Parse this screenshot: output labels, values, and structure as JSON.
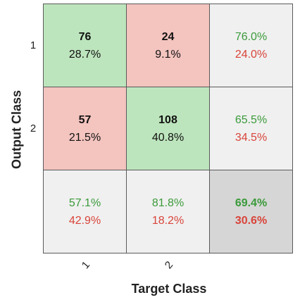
{
  "chart_data": {
    "type": "heatmap",
    "ylabel": "Output Class",
    "xlabel": "Target Class",
    "row_labels": [
      "1",
      "2"
    ],
    "col_labels": [
      "1",
      "2"
    ],
    "cells": [
      [
        {
          "count": "76",
          "percent": "28.7%"
        },
        {
          "count": "24",
          "percent": "9.1%"
        }
      ],
      [
        {
          "count": "57",
          "percent": "21.5%"
        },
        {
          "count": "108",
          "percent": "40.8%"
        }
      ]
    ],
    "row_summary": [
      {
        "correct": "76.0%",
        "incorrect": "24.0%"
      },
      {
        "correct": "65.5%",
        "incorrect": "34.5%"
      }
    ],
    "col_summary": [
      {
        "correct": "57.1%",
        "incorrect": "42.9%"
      },
      {
        "correct": "81.8%",
        "incorrect": "18.2%"
      }
    ],
    "overall": {
      "correct": "69.4%",
      "incorrect": "30.6%"
    },
    "colors": {
      "correct_cell": "#bde5bd",
      "incorrect_cell": "#f4c4bf",
      "summary_cell": "#f0f0f0",
      "overall_cell": "#d6d6d6",
      "correct_text": "#3a9a3a",
      "incorrect_text": "#d9443a"
    }
  }
}
